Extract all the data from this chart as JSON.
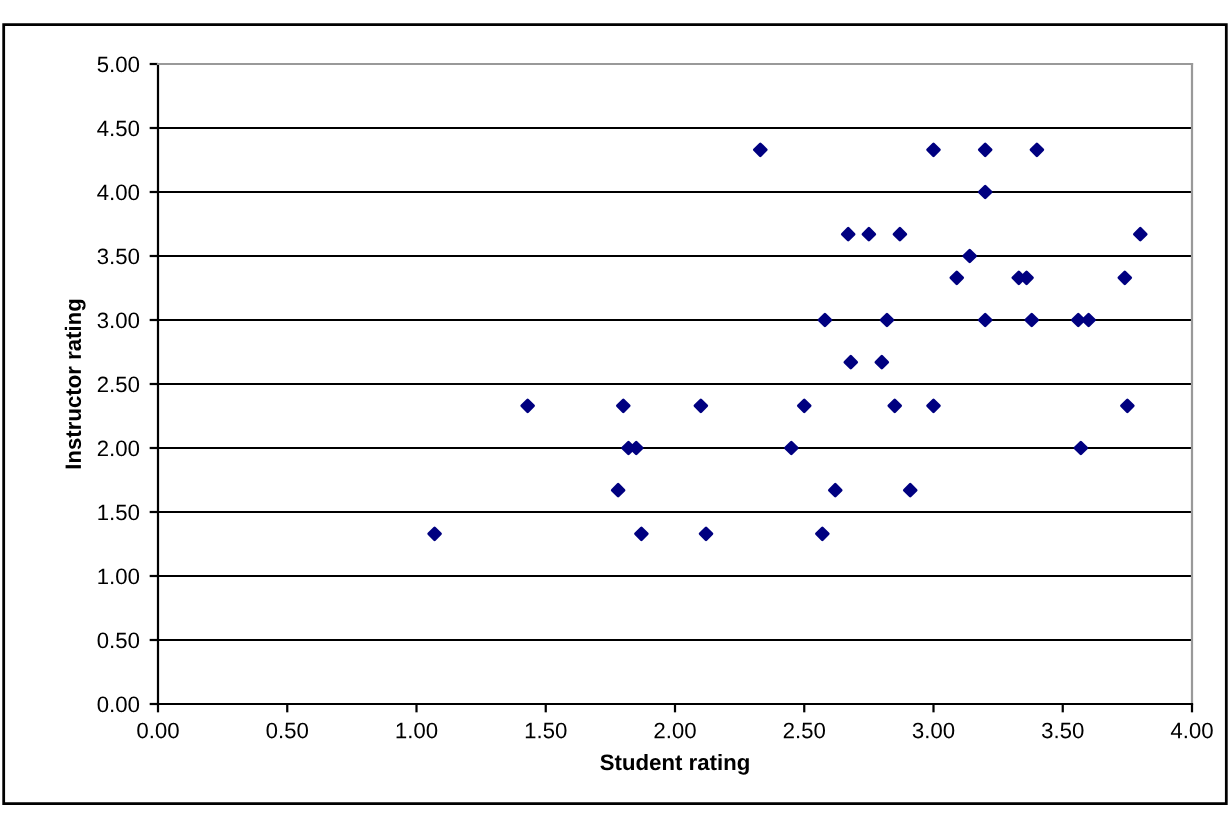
{
  "chart_data": {
    "type": "scatter",
    "xlabel": "Student rating",
    "ylabel": "Instructor rating",
    "x": [
      1.07,
      1.43,
      1.8,
      1.82,
      1.85,
      1.78,
      1.87,
      2.1,
      2.12,
      2.33,
      2.45,
      2.5,
      2.57,
      2.58,
      2.62,
      2.67,
      2.68,
      2.75,
      2.8,
      2.82,
      2.85,
      2.87,
      2.91,
      3.0,
      3.0,
      3.09,
      3.14,
      3.2,
      3.2,
      3.2,
      3.33,
      3.36,
      3.38,
      3.4,
      3.56,
      3.6,
      3.57,
      3.74,
      3.75,
      3.8
    ],
    "values": [
      1.33,
      2.33,
      2.33,
      2.0,
      2.0,
      1.67,
      1.33,
      2.33,
      1.33,
      4.33,
      2.0,
      2.33,
      1.33,
      3.0,
      1.67,
      3.67,
      2.67,
      3.67,
      2.67,
      3.0,
      2.33,
      3.67,
      1.67,
      4.33,
      2.33,
      3.33,
      3.5,
      4.33,
      4.0,
      3.0,
      3.33,
      3.33,
      3.0,
      4.33,
      3.0,
      3.0,
      2.0,
      3.33,
      2.33,
      3.67
    ],
    "color": "#000080",
    "marker": "diamond",
    "grid": "y",
    "legend": false,
    "xlim": [
      0,
      4
    ],
    "xticks": [
      {
        "value": 0,
        "label": "0.00"
      },
      {
        "value": 0.5,
        "label": "0.50"
      },
      {
        "value": 1,
        "label": "1.00"
      },
      {
        "value": 1.5,
        "label": "1.50"
      },
      {
        "value": 2,
        "label": "2.00"
      },
      {
        "value": 2.5,
        "label": "2.50"
      },
      {
        "value": 3,
        "label": "3.00"
      },
      {
        "value": 3.5,
        "label": "3.50"
      },
      {
        "value": 4,
        "label": "4.00"
      }
    ],
    "ylim": [
      0,
      5
    ],
    "yticks": [
      {
        "value": 0,
        "label": "0.00"
      },
      {
        "value": 0.5,
        "label": "0.50"
      },
      {
        "value": 1,
        "label": "1.00"
      },
      {
        "value": 1.5,
        "label": "1.50"
      },
      {
        "value": 2,
        "label": "2.00"
      },
      {
        "value": 2.5,
        "label": "2.50"
      },
      {
        "value": 3,
        "label": "3.00"
      },
      {
        "value": 3.5,
        "label": "3.50"
      },
      {
        "value": 4,
        "label": "4.00"
      },
      {
        "value": 4.5,
        "label": "4.50"
      },
      {
        "value": 5,
        "label": "5.00"
      }
    ]
  }
}
